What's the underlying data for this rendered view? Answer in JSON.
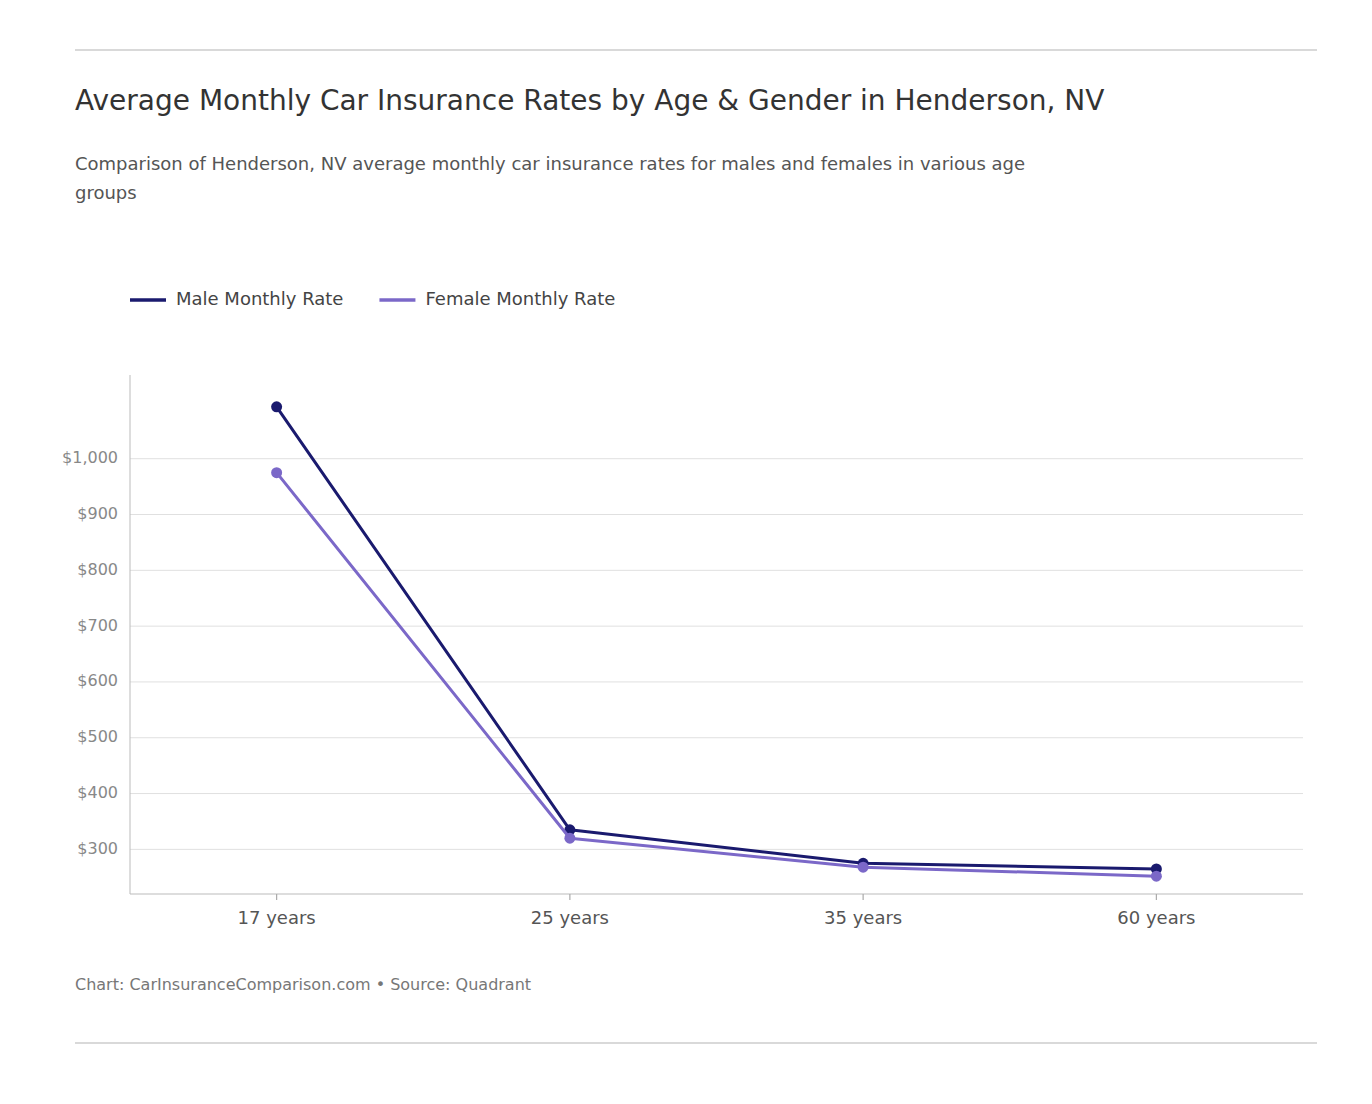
{
  "chart_data": {
    "type": "line",
    "title": "Average Monthly Car Insurance Rates by Age & Gender in Henderson, NV",
    "subtitle": "Comparison of Henderson, NV average monthly car insurance rates for males and females in various age\ngroups",
    "annotations": [
      "Chart: CarInsuranceComparison.com • Source: Quadrant"
    ],
    "categories": [
      "17 years",
      "25 years",
      "35 years",
      "60 years"
    ],
    "series": [
      {
        "name": "Male Monthly Rate",
        "color": "#1a1a6e",
        "values": [
          1093,
          335,
          275,
          265
        ]
      },
      {
        "name": "Female Monthly Rate",
        "color": "#7b68c8",
        "values": [
          975,
          320,
          268,
          252
        ]
      }
    ],
    "ylim": [
      220,
      1150
    ],
    "yticks": [
      {
        "value": 300,
        "label": "$300"
      },
      {
        "value": 400,
        "label": "$400"
      },
      {
        "value": 500,
        "label": "$500"
      },
      {
        "value": 600,
        "label": "$600"
      },
      {
        "value": 700,
        "label": "$700"
      },
      {
        "value": 800,
        "label": "$800"
      },
      {
        "value": 900,
        "label": "$900"
      },
      {
        "value": 1000,
        "label": "$1,000"
      }
    ],
    "grid": true,
    "legend": "top",
    "marker": "circle"
  }
}
